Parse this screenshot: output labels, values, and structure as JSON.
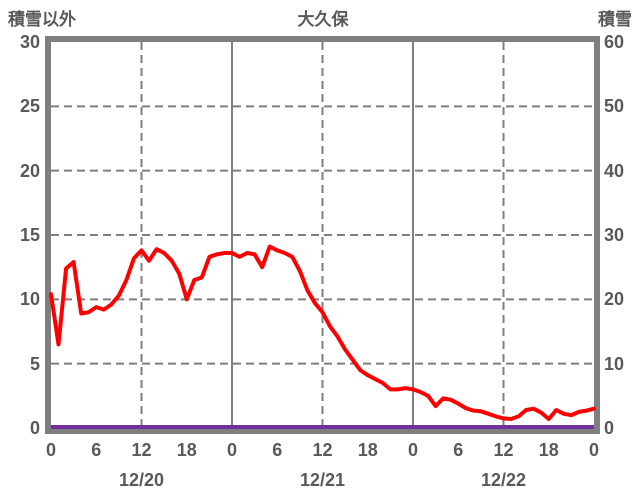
{
  "chart_data": {
    "type": "line",
    "title": "大久保",
    "left_axis": {
      "label": "積雪以外",
      "min": 0,
      "max": 30,
      "ticks": [
        0,
        5,
        10,
        15,
        20,
        25,
        30
      ]
    },
    "right_axis": {
      "label": "積雪",
      "min": 0,
      "max": 60,
      "ticks": [
        0,
        10,
        20,
        30,
        40,
        50,
        60
      ]
    },
    "x_axis": {
      "hours_span": 72,
      "tick_interval_hours": 6,
      "hour_ticks": [
        "0",
        "6",
        "12",
        "18",
        "0",
        "6",
        "12",
        "18",
        "0",
        "6",
        "12",
        "18",
        "0"
      ],
      "dates": [
        "12/20",
        "12/21",
        "12/22"
      ],
      "date_center_hours": [
        12,
        36,
        60
      ]
    },
    "grid": {
      "h_dashed_values": [
        5,
        10,
        15,
        20,
        25
      ],
      "v_dashed_hours": [
        12,
        36,
        60
      ],
      "v_solid_hours": [
        24,
        48
      ]
    },
    "colors": {
      "text": "#595959",
      "grid": "#7f7f7f",
      "border": "#7f7f7f",
      "series_main": "#FF0000",
      "series_snow": "#7030A0",
      "background": "#ffffff"
    },
    "series": [
      {
        "name": "積雪以外",
        "axis": "left",
        "color": "#FF0000",
        "x_start_hour": 0,
        "x_step_hours": 1,
        "values": [
          10.4,
          6.5,
          12.4,
          12.9,
          8.9,
          9.0,
          9.4,
          9.2,
          9.6,
          10.3,
          11.5,
          13.2,
          13.8,
          13.0,
          13.9,
          13.6,
          13.0,
          12.0,
          10.0,
          11.5,
          11.7,
          13.3,
          13.5,
          13.6,
          13.6,
          13.3,
          13.6,
          13.5,
          12.5,
          14.1,
          13.8,
          13.6,
          13.3,
          12.2,
          10.7,
          9.7,
          9.0,
          7.9,
          7.1,
          6.1,
          5.3,
          4.5,
          4.1,
          3.8,
          3.5,
          3.0,
          3.0,
          3.1,
          3.0,
          2.8,
          2.5,
          1.7,
          2.3,
          2.2,
          1.9,
          1.55,
          1.35,
          1.3,
          1.1,
          0.9,
          0.75,
          0.7,
          0.9,
          1.4,
          1.5,
          1.2,
          0.7,
          1.4,
          1.1,
          1.0,
          1.25,
          1.35,
          1.5
        ]
      },
      {
        "name": "積雪",
        "axis": "right",
        "color": "#7030A0",
        "x_start_hour": 0,
        "x_end_hour": 72,
        "constant_value": 0
      }
    ]
  }
}
